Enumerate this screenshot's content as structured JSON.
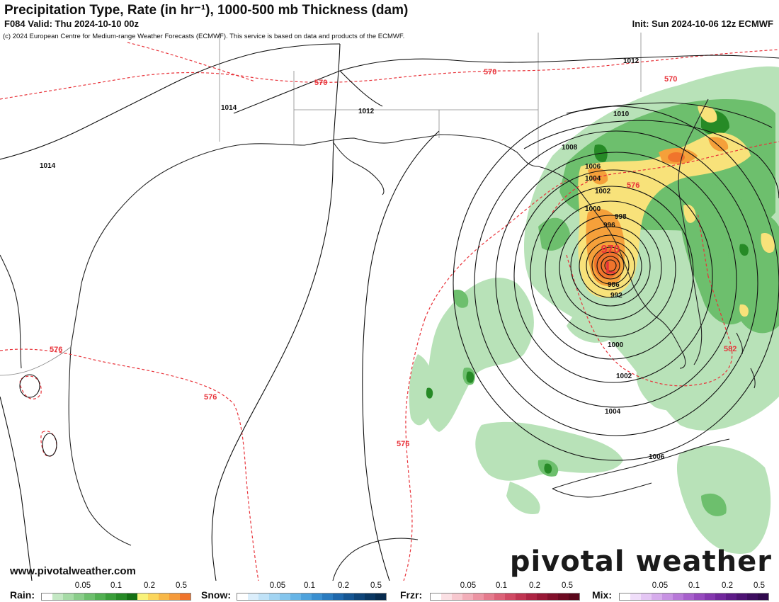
{
  "header": {
    "title": "Precipitation Type, Rate (in hr⁻¹), 1000-500 mb Thickness (dam)",
    "valid": "F084 Valid: Thu 2024-10-10 00z",
    "init": "Init: Sun 2024-10-06 12z ECMWF",
    "copyright": "(c) 2024 European Centre for Medium-range Weather Forecasts (ECMWF). This service is based on data and products of the ECMWF."
  },
  "map": {
    "low_center_label": "L",
    "low_pressure_label": "970",
    "isobar_labels": [
      "1012",
      "1014",
      "1012",
      "1014",
      "1010",
      "1008",
      "1006",
      "1004",
      "1002",
      "1000",
      "998",
      "996",
      "986",
      "992",
      "1000",
      "1002",
      "1004",
      "1006"
    ],
    "thickness_labels": [
      "570",
      "570",
      "570",
      "576",
      "576",
      "576",
      "576",
      "582"
    ],
    "colors": {
      "isobar": "#111111",
      "thickness": "#e8333a",
      "coast": "#222222"
    }
  },
  "footer": {
    "website": "www.pivotalweather.com",
    "logo": "pivotal weather"
  },
  "legend": {
    "ticks": [
      "0.05",
      "0.1",
      "0.2",
      "0.5"
    ],
    "groups": [
      {
        "label": "Rain:",
        "colors": [
          "#ffffff",
          "#c4e8c4",
          "#a6dba6",
          "#8acd8a",
          "#6dbf6d",
          "#52b052",
          "#3a9e3a",
          "#268a26",
          "#157015",
          "#f8f27a",
          "#fbd65c",
          "#f8b848",
          "#f59a3a",
          "#f0742c"
        ]
      },
      {
        "label": "Snow:",
        "colors": [
          "#ffffff",
          "#dbeefb",
          "#c0e2f7",
          "#a2d4f2",
          "#84c5ed",
          "#66b4e6",
          "#4ea2dc",
          "#3a8fd0",
          "#2a7bbf",
          "#1e67ab",
          "#155592",
          "#0f4579",
          "#0a3762",
          "#072b4e"
        ]
      },
      {
        "label": "Frzr:",
        "colors": [
          "#ffffff",
          "#fbe0e4",
          "#f7c8cf",
          "#f2aeb9",
          "#ec94a3",
          "#e57b8d",
          "#dc6278",
          "#d04a64",
          "#c03552",
          "#ad2443",
          "#981836",
          "#82102b",
          "#6d0a22",
          "#5a061b"
        ]
      },
      {
        "label": "Mix:",
        "colors": [
          "#ffffff",
          "#f0defa",
          "#e4c6f4",
          "#d6acec",
          "#c792e3",
          "#b778d8",
          "#a760cc",
          "#964abe",
          "#8437ae",
          "#71279c",
          "#5e1b88",
          "#4d1373",
          "#3d0d5f",
          "#30094d"
        ]
      }
    ]
  }
}
